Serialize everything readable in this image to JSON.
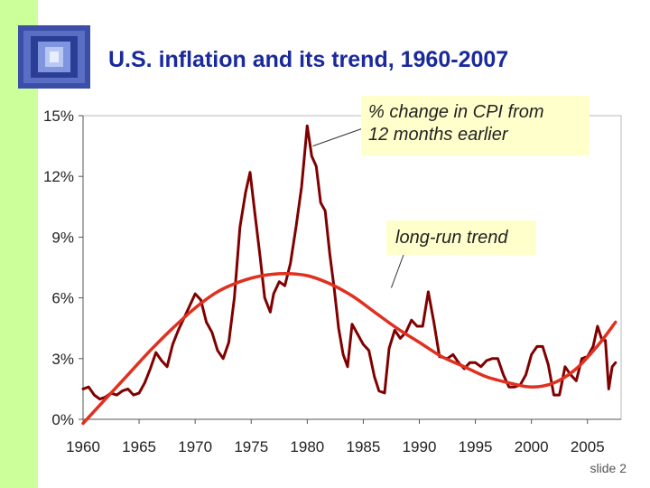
{
  "slide": {
    "title_main": "U.S. inflation and its trend, ",
    "title_years": "1960-2007",
    "slide_number": "slide 2",
    "accent_color": "#ccff99",
    "title_color": "#1a2a9c"
  },
  "chart_data": {
    "type": "line",
    "title": "U.S. inflation and its trend, 1960-2007",
    "xlabel": "",
    "ylabel": "",
    "xlim": [
      1960,
      2008
    ],
    "ylim": [
      0,
      15
    ],
    "x_ticks": [
      1960,
      1965,
      1970,
      1975,
      1980,
      1985,
      1990,
      1995,
      2000,
      2005
    ],
    "x_tick_labels": [
      "1960",
      "1965",
      "1970",
      "1975",
      "1980",
      "1985",
      "1990",
      "1995",
      "2000",
      "2005"
    ],
    "y_ticks": [
      0,
      3,
      6,
      9,
      12,
      15
    ],
    "y_tick_labels": [
      "0%",
      "3%",
      "6%",
      "9%",
      "12%",
      "15%"
    ],
    "grid": false,
    "series": [
      {
        "name": "% change in CPI from 12 months earlier",
        "color": "#800000",
        "points": [
          [
            1960.0,
            1.5
          ],
          [
            1960.5,
            1.6
          ],
          [
            1961.0,
            1.2
          ],
          [
            1961.5,
            1.0
          ],
          [
            1962.0,
            1.1
          ],
          [
            1962.5,
            1.3
          ],
          [
            1963.0,
            1.2
          ],
          [
            1963.5,
            1.4
          ],
          [
            1964.0,
            1.5
          ],
          [
            1964.5,
            1.2
          ],
          [
            1965.0,
            1.3
          ],
          [
            1965.5,
            1.8
          ],
          [
            1966.0,
            2.5
          ],
          [
            1966.5,
            3.3
          ],
          [
            1967.0,
            2.9
          ],
          [
            1967.5,
            2.6
          ],
          [
            1968.0,
            3.7
          ],
          [
            1968.5,
            4.4
          ],
          [
            1969.0,
            5.0
          ],
          [
            1969.5,
            5.6
          ],
          [
            1970.0,
            6.2
          ],
          [
            1970.5,
            5.9
          ],
          [
            1971.0,
            4.8
          ],
          [
            1971.5,
            4.3
          ],
          [
            1972.0,
            3.4
          ],
          [
            1972.5,
            3.0
          ],
          [
            1973.0,
            3.8
          ],
          [
            1973.5,
            6.0
          ],
          [
            1974.0,
            9.5
          ],
          [
            1974.5,
            11.2
          ],
          [
            1974.9,
            12.2
          ],
          [
            1975.3,
            10.3
          ],
          [
            1975.8,
            8.0
          ],
          [
            1976.2,
            6.0
          ],
          [
            1976.7,
            5.3
          ],
          [
            1977.0,
            6.2
          ],
          [
            1977.5,
            6.8
          ],
          [
            1978.0,
            6.6
          ],
          [
            1978.5,
            7.7
          ],
          [
            1979.0,
            9.5
          ],
          [
            1979.5,
            11.5
          ],
          [
            1980.0,
            14.5
          ],
          [
            1980.4,
            13.0
          ],
          [
            1980.8,
            12.5
          ],
          [
            1981.2,
            10.7
          ],
          [
            1981.6,
            10.3
          ],
          [
            1982.0,
            8.2
          ],
          [
            1982.4,
            6.5
          ],
          [
            1982.8,
            4.5
          ],
          [
            1983.2,
            3.2
          ],
          [
            1983.6,
            2.6
          ],
          [
            1984.0,
            4.7
          ],
          [
            1984.5,
            4.2
          ],
          [
            1985.0,
            3.7
          ],
          [
            1985.5,
            3.4
          ],
          [
            1986.0,
            2.1
          ],
          [
            1986.4,
            1.4
          ],
          [
            1986.9,
            1.3
          ],
          [
            1987.3,
            3.5
          ],
          [
            1987.8,
            4.4
          ],
          [
            1988.3,
            4.0
          ],
          [
            1988.8,
            4.3
          ],
          [
            1989.3,
            4.9
          ],
          [
            1989.8,
            4.6
          ],
          [
            1990.3,
            4.6
          ],
          [
            1990.8,
            6.3
          ],
          [
            1991.3,
            4.8
          ],
          [
            1991.8,
            3.1
          ],
          [
            1992.5,
            3.0
          ],
          [
            1993.0,
            3.2
          ],
          [
            1993.5,
            2.8
          ],
          [
            1994.0,
            2.5
          ],
          [
            1994.5,
            2.8
          ],
          [
            1995.0,
            2.8
          ],
          [
            1995.5,
            2.6
          ],
          [
            1996.0,
            2.9
          ],
          [
            1996.5,
            3.0
          ],
          [
            1997.0,
            3.0
          ],
          [
            1997.5,
            2.2
          ],
          [
            1998.0,
            1.6
          ],
          [
            1998.5,
            1.6
          ],
          [
            1999.0,
            1.7
          ],
          [
            1999.5,
            2.2
          ],
          [
            2000.0,
            3.2
          ],
          [
            2000.5,
            3.6
          ],
          [
            2001.0,
            3.6
          ],
          [
            2001.5,
            2.7
          ],
          [
            2002.0,
            1.2
          ],
          [
            2002.5,
            1.2
          ],
          [
            2003.0,
            2.6
          ],
          [
            2003.5,
            2.2
          ],
          [
            2004.0,
            1.9
          ],
          [
            2004.5,
            3.0
          ],
          [
            2005.0,
            3.1
          ],
          [
            2005.5,
            3.6
          ],
          [
            2005.9,
            4.6
          ],
          [
            2006.3,
            3.9
          ],
          [
            2006.6,
            3.9
          ],
          [
            2006.9,
            1.5
          ],
          [
            2007.2,
            2.6
          ],
          [
            2007.5,
            2.8
          ]
        ]
      },
      {
        "name": "long-run trend",
        "color": "#e03020",
        "points": [
          [
            1960.0,
            -0.2
          ],
          [
            1962.0,
            1.0
          ],
          [
            1964.0,
            2.2
          ],
          [
            1966.0,
            3.4
          ],
          [
            1968.0,
            4.5
          ],
          [
            1970.0,
            5.5
          ],
          [
            1972.0,
            6.3
          ],
          [
            1974.0,
            6.8
          ],
          [
            1976.0,
            7.1
          ],
          [
            1978.0,
            7.2
          ],
          [
            1980.0,
            7.1
          ],
          [
            1982.0,
            6.7
          ],
          [
            1984.0,
            6.1
          ],
          [
            1986.0,
            5.3
          ],
          [
            1988.0,
            4.5
          ],
          [
            1990.0,
            3.8
          ],
          [
            1992.0,
            3.1
          ],
          [
            1994.0,
            2.6
          ],
          [
            1996.0,
            2.1
          ],
          [
            1998.0,
            1.8
          ],
          [
            2000.0,
            1.6
          ],
          [
            2002.0,
            1.8
          ],
          [
            2004.0,
            2.5
          ],
          [
            2006.0,
            3.7
          ],
          [
            2007.5,
            4.8
          ]
        ]
      }
    ],
    "annotations": [
      {
        "text_line1": "% change in CPI from",
        "text_line2": "12 months earlier",
        "points_to": [
          1980.5,
          13.5
        ]
      },
      {
        "text": "long-run trend",
        "points_to": [
          1987.5,
          6.5
        ]
      }
    ]
  }
}
